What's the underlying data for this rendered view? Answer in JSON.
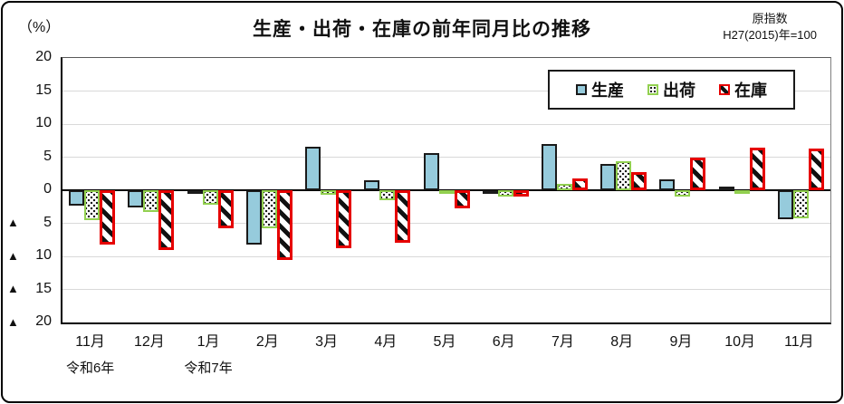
{
  "header": {
    "percent_label": "（%）",
    "title": "生産・出荷・在庫の前年同月比の推移",
    "index_type": "原指数",
    "base_note": "H27(2015)年=100"
  },
  "legend": [
    {
      "key": "production",
      "label": "生産"
    },
    {
      "key": "shipment",
      "label": "出荷"
    },
    {
      "key": "inventory",
      "label": "在庫"
    }
  ],
  "chart_data": {
    "type": "bar",
    "title": "生産・出荷・在庫の前年同月比の推移",
    "ylabel": "（%）",
    "categories": [
      "11月",
      "12月",
      "1月",
      "2月",
      "3月",
      "4月",
      "5月",
      "6月",
      "7月",
      "8月",
      "9月",
      "10月",
      "11月"
    ],
    "era_labels": [
      {
        "text": "令和6年",
        "category_index": 0
      },
      {
        "text": "令和7年",
        "category_index": 2
      }
    ],
    "series": [
      {
        "key": "production",
        "name": "生産",
        "values": [
          -2.3,
          -2.6,
          -0.4,
          -8.2,
          6.6,
          1.5,
          5.6,
          -0.4,
          7.0,
          4.0,
          1.6,
          0.6,
          -4.4
        ]
      },
      {
        "key": "shipment",
        "name": "出荷",
        "values": [
          -4.5,
          -3.3,
          -2.2,
          -5.7,
          -0.7,
          -1.5,
          -0.6,
          -0.9,
          1.0,
          4.4,
          -0.9,
          -0.6,
          -4.3
        ]
      },
      {
        "key": "inventory",
        "name": "在庫",
        "values": [
          -8.2,
          -9.0,
          -5.8,
          -10.6,
          -8.8,
          -8.0,
          -2.8,
          -1.0,
          1.8,
          2.8,
          5.0,
          6.5,
          6.3
        ]
      }
    ],
    "ylim": [
      -20,
      20
    ],
    "ytick_step": 5,
    "yticks": [
      20,
      15,
      10,
      5,
      0,
      -5,
      -10,
      -15,
      -20
    ],
    "negative_tick_prefix": "▲",
    "grid": true,
    "legend_position": "top-right-inside"
  },
  "colors": {
    "production_fill": "#96cbdc",
    "shipment_border": "#92d050",
    "inventory_border": "#e60000",
    "gridline": "#d9d9d9",
    "axis": "#000000"
  }
}
